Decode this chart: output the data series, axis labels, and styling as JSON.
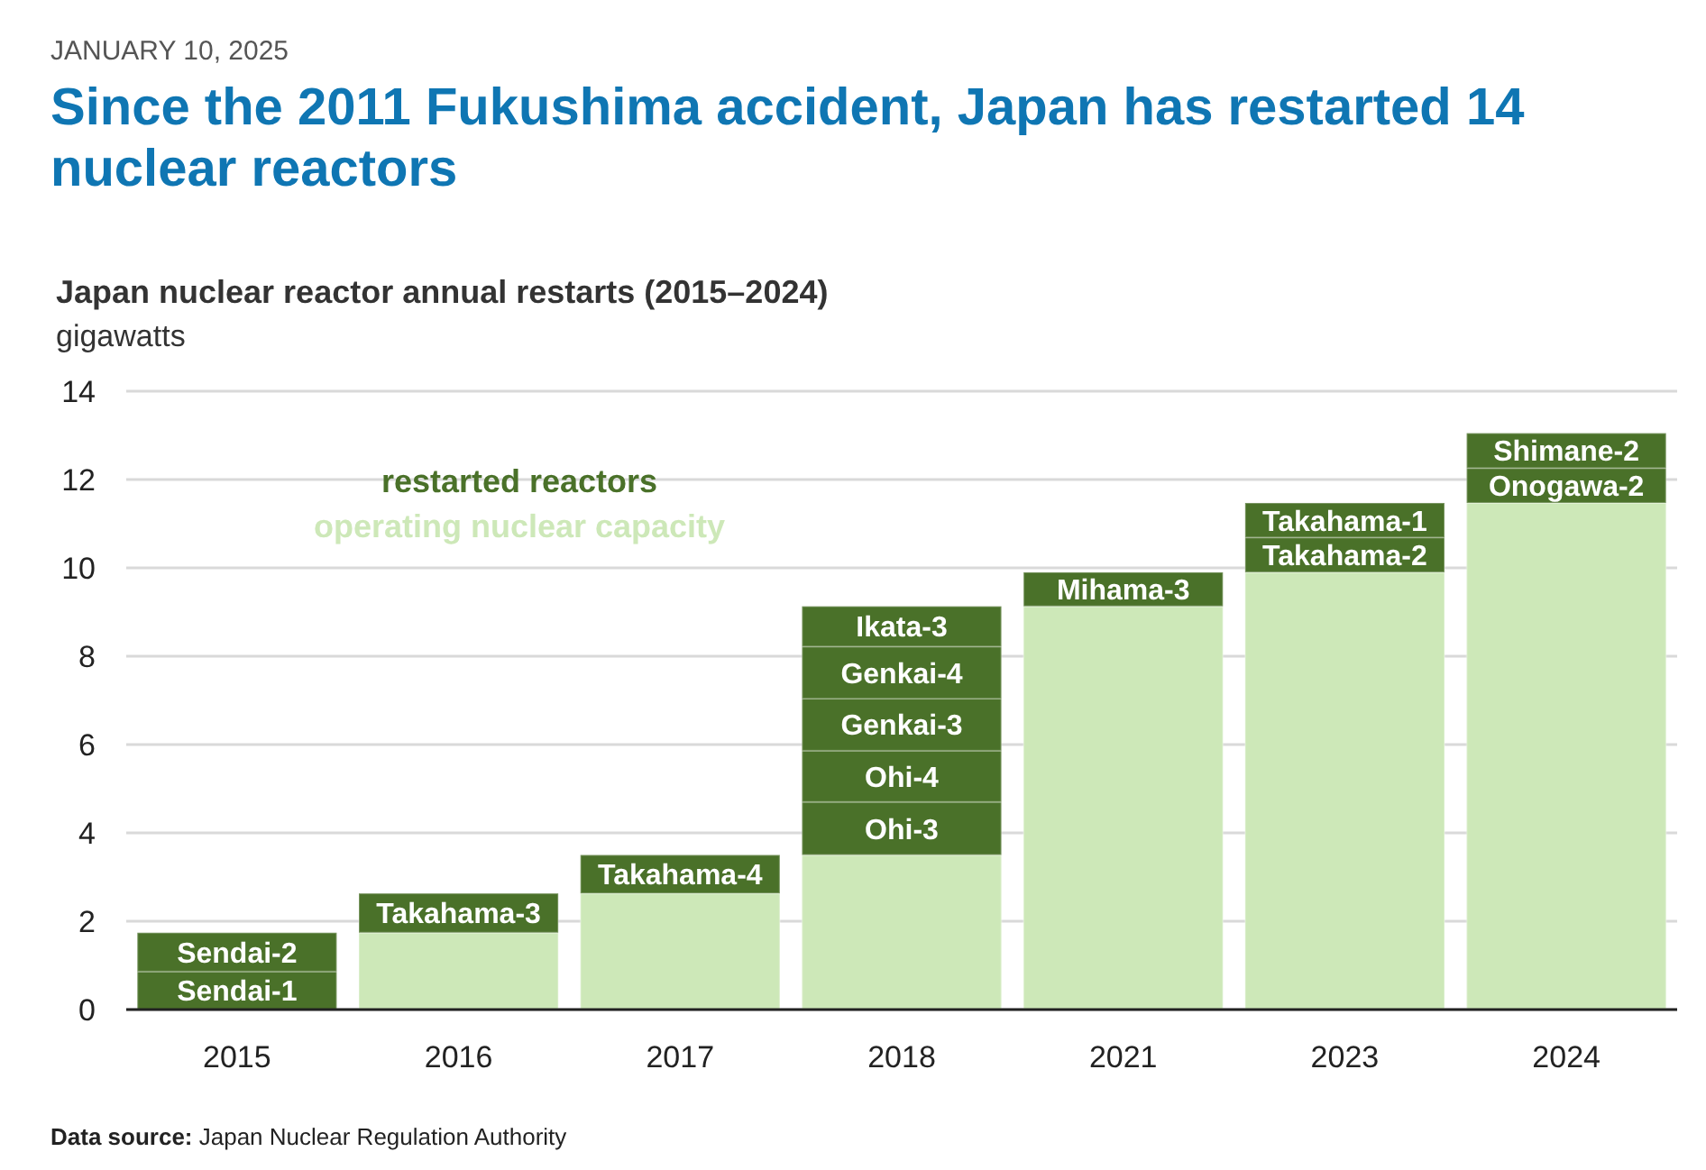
{
  "chart_data": {
    "type": "bar",
    "title": "Since the 2011 Fukushima accident, Japan has restarted 14 nuclear reactors",
    "subtitle": "Japan nuclear reactor annual restarts (2015–2024)",
    "ylabel": "gigawatts",
    "annotations": [
      "JANUARY 10, 2025",
      "Data source: Japan Nuclear Regulation Authority"
    ],
    "categories": [
      "2015",
      "2016",
      "2017",
      "2018",
      "2021",
      "2023",
      "2024"
    ],
    "stacked": true,
    "ylim": [
      0,
      14
    ],
    "yticks": [
      0,
      2,
      4,
      6,
      8,
      10,
      12,
      14
    ],
    "grid": "y",
    "legend": "top left",
    "series": [
      {
        "name": "operating nuclear capacity",
        "color": "#cde8b8",
        "values": [
          0,
          1.74,
          2.63,
          3.5,
          9.13,
          9.9,
          11.47
        ]
      },
      {
        "name": "restarted reactors",
        "color": "#4a7129",
        "values": [
          0.86,
          0.89,
          0.87,
          1.2,
          0.77,
          0.79,
          0.79
        ],
        "value_labels": [
          "Sendai-1",
          "Takahama-3",
          "Takahama-4",
          "Ohi-3",
          "Mihama-3",
          "Takahama-2",
          "Onogawa-2"
        ]
      },
      {
        "color": "#4a7129",
        "values": [
          0.88,
          null,
          null,
          1.16,
          null,
          0.78,
          0.79
        ],
        "value_labels": [
          "Sendai-2",
          null,
          null,
          "Ohi-4",
          null,
          "Takahama-1",
          "Shimane-2"
        ]
      },
      {
        "color": "#4a7129",
        "values": [
          null,
          null,
          null,
          1.18,
          null,
          null,
          null
        ],
        "value_labels": [
          null,
          null,
          null,
          "Genkai-3",
          null,
          null,
          null
        ]
      },
      {
        "color": "#4a7129",
        "values": [
          null,
          null,
          null,
          1.18,
          null,
          null,
          null
        ],
        "value_labels": [
          null,
          null,
          null,
          "Genkai-4",
          null,
          null,
          null
        ]
      },
      {
        "color": "#4a7129",
        "values": [
          null,
          null,
          null,
          0.91,
          null,
          null,
          null
        ],
        "value_labels": [
          null,
          null,
          null,
          "Ikata-3",
          null,
          null,
          null
        ]
      }
    ]
  }
}
